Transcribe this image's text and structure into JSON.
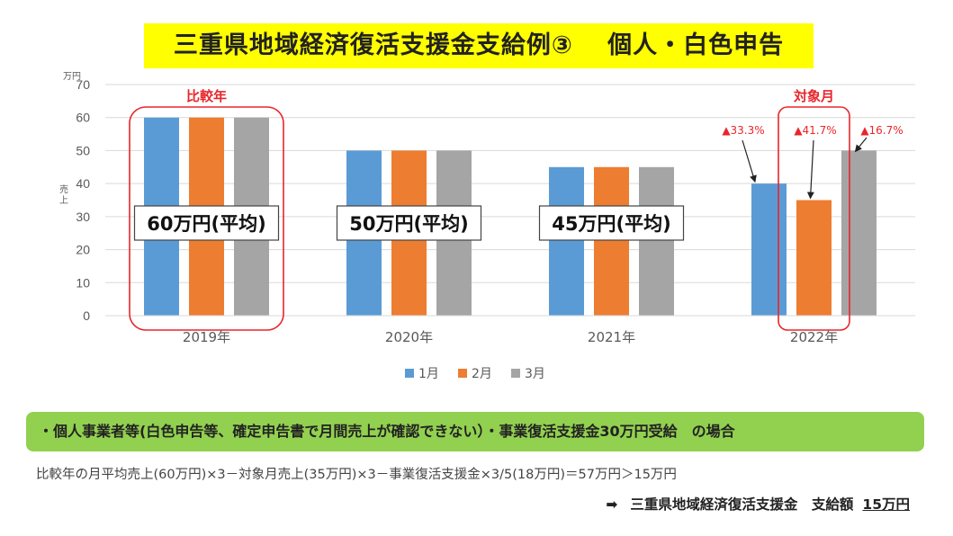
{
  "title": "三重県地域経済復活支援金支給例③　 個人・白色申告",
  "chart_data": {
    "type": "bar",
    "categories": [
      "2019年",
      "2020年",
      "2021年",
      "2022年"
    ],
    "series": [
      {
        "name": "1月",
        "values": [
          60,
          50,
          45,
          40
        ],
        "color": "#5b9bd5"
      },
      {
        "name": "2月",
        "values": [
          60,
          50,
          45,
          35
        ],
        "color": "#ed7d31"
      },
      {
        "name": "3月",
        "values": [
          60,
          50,
          45,
          50
        ],
        "color": "#a5a5a5"
      }
    ],
    "ylim": [
      0,
      70
    ],
    "yticks": [
      0,
      10,
      20,
      30,
      40,
      50,
      60,
      70
    ],
    "yunit": "万円",
    "ylabel": "売上",
    "grid": true,
    "legend_position": "bottom",
    "annotations": {
      "averages": [
        "60万円(平均)",
        "50万円(平均)",
        "45万円(平均)"
      ],
      "compare_label": "比較年",
      "target_label": "対象月",
      "changes": [
        "▲33.3%",
        "▲41.7%",
        "▲16.7%"
      ]
    }
  },
  "note": "・個人事業者等(白色申告等、確定申告書で月間売上が確認できない）・事業復活支援金30万円受給　の場合",
  "formula": "比較年の月平均売上(60万円)×3－対象月売上(35万円)×3－事業復活支援金×3/5(18万円)＝57万円＞15万円",
  "result": {
    "arrow": "➡",
    "label": "三重県地域経済復活支援金　支給額",
    "amount": "15万円"
  },
  "colors": {
    "title_bg": "#ffff00",
    "note_bg": "#92d050",
    "highlight": "#e8262b"
  }
}
